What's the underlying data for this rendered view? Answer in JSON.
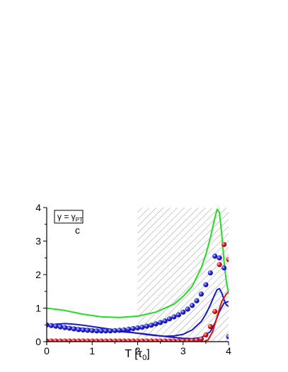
{
  "chart_data": {
    "type": "line",
    "xlabel": "T [τ",
    "xlabel_sub": "0",
    "xlabel_close": "]",
    "ylabel": "",
    "xlim": [
      0,
      4
    ],
    "ylim": [
      0,
      4
    ],
    "xticks": [
      "0",
      "1",
      "2",
      "3",
      "4"
    ],
    "yticks": [
      "0",
      "1",
      "2",
      "3",
      "4"
    ],
    "shaded_region": [
      2.0,
      4.0
    ],
    "legend": {
      "lhs": "γ = γ",
      "sub": "PT",
      "placement": "top-left"
    },
    "panel_label": "c",
    "series": [
      {
        "kind": "line",
        "color": "#22dd22",
        "x": [
          0,
          0.4,
          0.8,
          1.2,
          1.6,
          2.0,
          2.4,
          2.8,
          3.0,
          3.2,
          3.4,
          3.5,
          3.6,
          3.7,
          3.75,
          3.8,
          3.85,
          3.9,
          3.95,
          4.0
        ],
        "y": [
          1.0,
          0.93,
          0.82,
          0.74,
          0.72,
          0.76,
          0.88,
          1.12,
          1.35,
          1.65,
          2.2,
          2.6,
          3.1,
          3.7,
          3.95,
          3.85,
          3.2,
          2.4,
          1.8,
          1.45
        ]
      },
      {
        "kind": "line",
        "color": "#1818cc",
        "x": [
          0,
          0.2,
          0.4,
          0.6,
          0.8,
          1.0,
          1.2,
          1.4,
          1.6,
          1.8,
          2.0,
          2.2,
          2.4,
          2.6,
          2.8,
          3.0,
          3.2,
          3.4,
          3.5,
          3.6,
          3.7,
          3.75,
          3.8,
          3.85,
          3.9,
          3.95,
          4.0
        ],
        "y": [
          0.48,
          0.52,
          0.54,
          0.52,
          0.49,
          0.45,
          0.41,
          0.37,
          0.33,
          0.29,
          0.25,
          0.21,
          0.18,
          0.16,
          0.17,
          0.22,
          0.35,
          0.6,
          0.82,
          1.1,
          1.42,
          1.55,
          1.58,
          1.45,
          1.25,
          1.1,
          1.05
        ]
      },
      {
        "kind": "line",
        "color": "#1818cc",
        "x": [
          0,
          0.3,
          0.6,
          0.9,
          1.2,
          1.5,
          1.8,
          2.1,
          2.4,
          2.7,
          3.0,
          3.2,
          3.4,
          3.6,
          3.7,
          3.8,
          3.9,
          4.0
        ],
        "y": [
          0.48,
          0.46,
          0.42,
          0.38,
          0.34,
          0.31,
          0.28,
          0.24,
          0.19,
          0.14,
          0.1,
          0.09,
          0.12,
          0.3,
          0.55,
          0.9,
          1.15,
          1.2
        ]
      },
      {
        "kind": "line",
        "color": "#dd1111",
        "x": [
          3.45,
          3.55,
          3.65,
          3.75,
          3.85,
          3.95,
          4.0
        ],
        "y": [
          0.0,
          0.05,
          0.3,
          0.75,
          1.2,
          1.42,
          1.48
        ]
      },
      {
        "kind": "points",
        "color": "#2a2adf",
        "x": [
          0,
          0.1,
          0.2,
          0.3,
          0.4,
          0.5,
          0.6,
          0.7,
          0.8,
          0.9,
          1.0,
          1.1,
          1.2,
          1.3,
          1.4,
          1.5,
          1.6,
          1.7,
          1.8,
          1.9,
          2.0,
          2.1,
          2.2,
          2.3,
          2.4,
          2.5,
          2.6,
          2.7,
          2.8,
          2.9,
          3.0,
          3.1,
          3.2,
          3.3,
          3.4,
          3.5,
          3.6,
          3.7,
          3.8,
          3.9,
          4.0
        ],
        "y": [
          0.5,
          0.48,
          0.46,
          0.44,
          0.42,
          0.4,
          0.38,
          0.36,
          0.35,
          0.34,
          0.33,
          0.32,
          0.32,
          0.32,
          0.32,
          0.33,
          0.34,
          0.35,
          0.37,
          0.39,
          0.41,
          0.43,
          0.46,
          0.49,
          0.53,
          0.57,
          0.62,
          0.68,
          0.74,
          0.8,
          0.88,
          0.97,
          1.08,
          1.22,
          1.42,
          1.7,
          2.05,
          2.55,
          2.5,
          2.2,
          0.15
        ]
      },
      {
        "kind": "points",
        "color": "#e02020",
        "x": [
          0,
          0.1,
          0.2,
          0.3,
          0.4,
          0.5,
          0.6,
          0.7,
          0.8,
          0.9,
          1.0,
          1.1,
          1.2,
          1.3,
          1.4,
          1.5,
          1.6,
          1.7,
          1.8,
          1.9,
          2.0,
          2.1,
          2.2,
          2.3,
          2.4,
          2.5,
          2.6,
          2.7,
          2.8,
          2.9,
          3.0,
          3.1,
          3.2,
          3.3,
          3.4,
          3.5,
          3.6,
          3.7,
          3.8,
          3.9,
          4.0
        ],
        "y": [
          0.02,
          0.02,
          0.02,
          0.02,
          0.02,
          0.02,
          0.02,
          0.02,
          0.02,
          0.02,
          0.02,
          0.02,
          0.02,
          0.02,
          0.02,
          0.02,
          0.02,
          0.02,
          0.02,
          0.02,
          0.02,
          0.02,
          0.02,
          0.02,
          0.02,
          0.02,
          0.02,
          0.02,
          0.02,
          0.02,
          0.02,
          0.02,
          0.03,
          0.04,
          0.08,
          0.2,
          0.45,
          0.9,
          2.3,
          2.9,
          2.45
        ]
      }
    ]
  }
}
